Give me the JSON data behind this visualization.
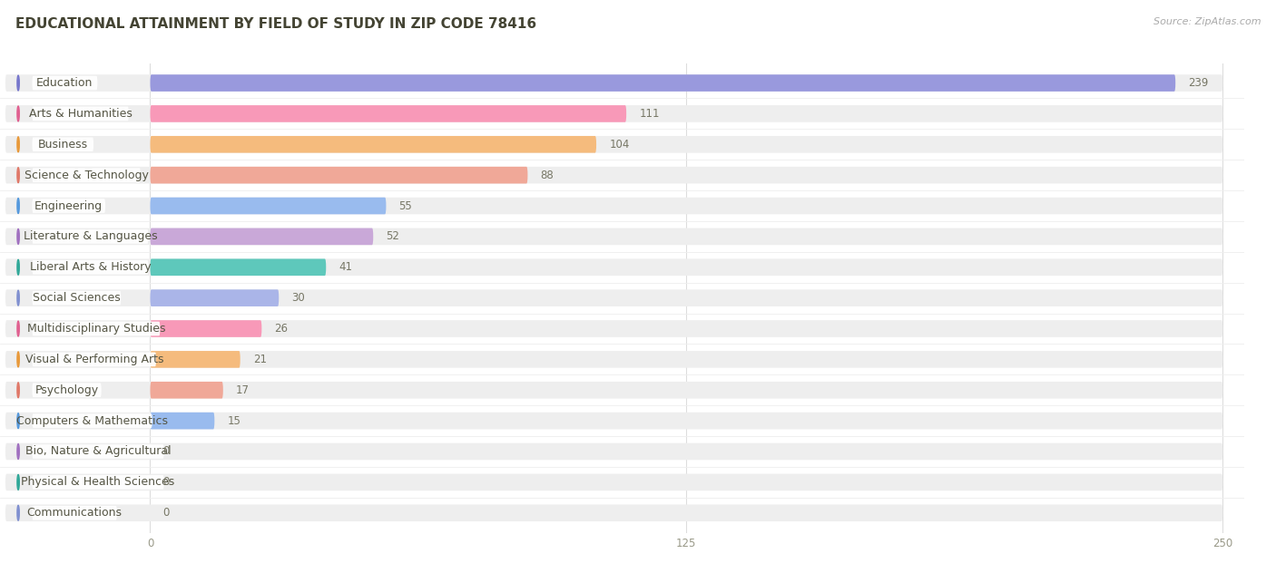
{
  "title": "EDUCATIONAL ATTAINMENT BY FIELD OF STUDY IN ZIP CODE 78416",
  "source": "Source: ZipAtlas.com",
  "categories": [
    "Education",
    "Arts & Humanities",
    "Business",
    "Science & Technology",
    "Engineering",
    "Literature & Languages",
    "Liberal Arts & History",
    "Social Sciences",
    "Multidisciplinary Studies",
    "Visual & Performing Arts",
    "Psychology",
    "Computers & Mathematics",
    "Bio, Nature & Agricultural",
    "Physical & Health Sciences",
    "Communications"
  ],
  "values": [
    239,
    111,
    104,
    88,
    55,
    52,
    41,
    30,
    26,
    21,
    17,
    15,
    0,
    0,
    0
  ],
  "bar_colors": [
    "#9999dd",
    "#f899b8",
    "#f5bb7d",
    "#f0a898",
    "#99bbee",
    "#c9a8d8",
    "#5ec8bb",
    "#aab5e8",
    "#f899b8",
    "#f5bb7d",
    "#f0a898",
    "#99bbee",
    "#c9a8d8",
    "#5ec8bb",
    "#aab5e8"
  ],
  "circle_colors": [
    "#7777cc",
    "#e06090",
    "#e8993a",
    "#e07868",
    "#5599dd",
    "#a070c0",
    "#30a898",
    "#8090d0",
    "#e06090",
    "#e8993a",
    "#e07868",
    "#5599dd",
    "#a070c0",
    "#30a898",
    "#8090d0"
  ],
  "xlim_max": 250,
  "xticks": [
    0,
    125,
    250
  ],
  "title_fontsize": 11,
  "label_fontsize": 9,
  "value_fontsize": 8.5,
  "source_fontsize": 8
}
